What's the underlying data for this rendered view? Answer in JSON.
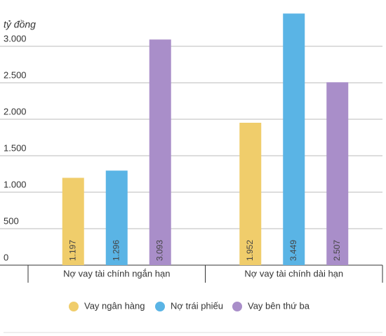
{
  "chart_data": {
    "type": "bar",
    "y_label": "tỷ đồng",
    "categories": [
      "Nợ vay tài chính ngắn hạn",
      "Nợ vay tài chính dài hạn"
    ],
    "series": [
      {
        "name": "Vay ngân hàng",
        "color": "#f0cd6b",
        "values": [
          1197,
          1952
        ],
        "value_labels": [
          "1.197",
          "1.952"
        ]
      },
      {
        "name": "Nợ trái phiếu",
        "color": "#5ab4e5",
        "values": [
          1296,
          3449
        ],
        "value_labels": [
          "1.296",
          "3.449"
        ]
      },
      {
        "name": "Vay bên thứ ba",
        "color": "#a98ec9",
        "values": [
          3093,
          2507
        ],
        "value_labels": [
          "3.093",
          "2.507"
        ]
      }
    ],
    "ylim": [
      0,
      3500
    ],
    "yticks": [
      0,
      500,
      {
        "value": 1000,
        "label": "1.000"
      },
      {
        "value": 1500,
        "label": "1.500"
      },
      {
        "value": 2000,
        "label": "2.000"
      },
      {
        "value": 2500,
        "label": "2.500"
      },
      {
        "value": 3000,
        "label": "3.000"
      }
    ],
    "grid": true,
    "legend": "bottom"
  }
}
